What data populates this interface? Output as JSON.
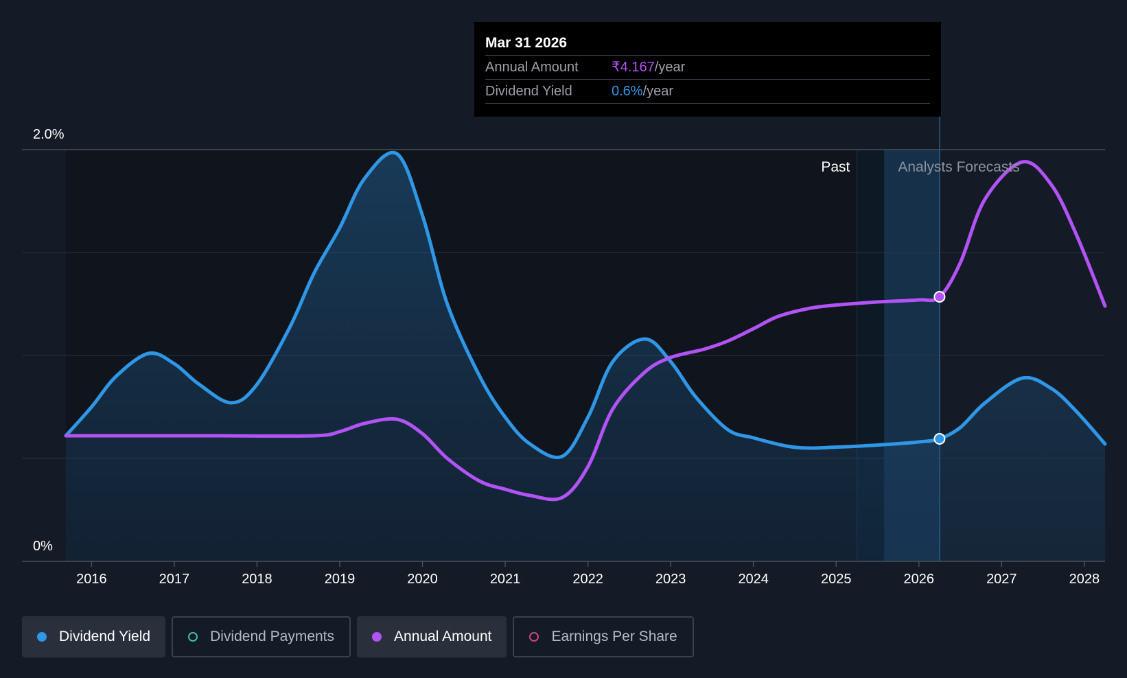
{
  "tooltip": {
    "date": "Mar 31 2026",
    "rows": [
      {
        "label": "Annual Amount",
        "value": "₹4.167",
        "unit": "/year"
      },
      {
        "label": "Dividend Yield",
        "value": "0.6%",
        "unit": "/year"
      }
    ]
  },
  "legend": [
    {
      "label": "Dividend Yield",
      "color": "#2f97e6",
      "filled": true,
      "active": true
    },
    {
      "label": "Dividend Payments",
      "color": "#3dbfb0",
      "filled": false,
      "active": false
    },
    {
      "label": "Annual Amount",
      "color": "#b153f5",
      "filled": true,
      "active": true
    },
    {
      "label": "Earnings Per Share",
      "color": "#d0457a",
      "filled": false,
      "active": false
    }
  ],
  "chart_data": {
    "type": "line",
    "title": "",
    "x_ticks": [
      "2016",
      "2017",
      "2018",
      "2019",
      "2020",
      "2021",
      "2022",
      "2023",
      "2024",
      "2025",
      "2026",
      "2027",
      "2028"
    ],
    "y_labels": [
      "2.0%",
      "0%"
    ],
    "ylim": [
      0,
      2.0
    ],
    "xlim": [
      2015.69,
      2028.25
    ],
    "regions": {
      "past_label": "Past",
      "forecast_label": "Analysts Forecasts",
      "past_end": 2025.25,
      "shade_start": 2025.58,
      "forecast_start": 2026.25
    },
    "series": [
      {
        "name": "Dividend Yield",
        "color": "#2f97e6",
        "area": true,
        "points": [
          [
            2015.69,
            0.61
          ],
          [
            2016.0,
            0.75
          ],
          [
            2016.3,
            0.9
          ],
          [
            2016.69,
            1.01
          ],
          [
            2017.0,
            0.96
          ],
          [
            2017.3,
            0.86
          ],
          [
            2017.69,
            0.77
          ],
          [
            2018.0,
            0.86
          ],
          [
            2018.4,
            1.14
          ],
          [
            2018.69,
            1.4
          ],
          [
            2019.0,
            1.62
          ],
          [
            2019.3,
            1.86
          ],
          [
            2019.69,
            1.98
          ],
          [
            2020.0,
            1.68
          ],
          [
            2020.3,
            1.25
          ],
          [
            2020.69,
            0.9
          ],
          [
            2021.0,
            0.7
          ],
          [
            2021.3,
            0.57
          ],
          [
            2021.69,
            0.51
          ],
          [
            2022.0,
            0.7
          ],
          [
            2022.3,
            0.97
          ],
          [
            2022.69,
            1.08
          ],
          [
            2023.0,
            0.97
          ],
          [
            2023.3,
            0.8
          ],
          [
            2023.69,
            0.64
          ],
          [
            2024.0,
            0.6
          ],
          [
            2024.4,
            0.56
          ],
          [
            2024.69,
            0.55
          ],
          [
            2025.0,
            0.555
          ],
          [
            2025.3,
            0.56
          ],
          [
            2025.69,
            0.57
          ],
          [
            2026.0,
            0.58
          ],
          [
            2026.25,
            0.595
          ],
          [
            2026.5,
            0.65
          ],
          [
            2026.8,
            0.77
          ],
          [
            2027.25,
            0.89
          ],
          [
            2027.6,
            0.84
          ],
          [
            2027.9,
            0.73
          ],
          [
            2028.25,
            0.57
          ]
        ]
      },
      {
        "name": "Annual Amount",
        "color": "#b153f5",
        "area": false,
        "points": [
          [
            2015.69,
            0.61
          ],
          [
            2016.5,
            0.61
          ],
          [
            2017.5,
            0.61
          ],
          [
            2018.69,
            0.61
          ],
          [
            2019.0,
            0.63
          ],
          [
            2019.3,
            0.67
          ],
          [
            2019.69,
            0.69
          ],
          [
            2020.0,
            0.62
          ],
          [
            2020.3,
            0.5
          ],
          [
            2020.69,
            0.39
          ],
          [
            2021.0,
            0.35
          ],
          [
            2021.3,
            0.32
          ],
          [
            2021.69,
            0.31
          ],
          [
            2022.0,
            0.46
          ],
          [
            2022.3,
            0.74
          ],
          [
            2022.69,
            0.92
          ],
          [
            2023.0,
            0.99
          ],
          [
            2023.4,
            1.03
          ],
          [
            2023.69,
            1.07
          ],
          [
            2024.0,
            1.13
          ],
          [
            2024.3,
            1.19
          ],
          [
            2024.69,
            1.23
          ],
          [
            2025.0,
            1.245
          ],
          [
            2025.5,
            1.26
          ],
          [
            2026.0,
            1.27
          ],
          [
            2026.25,
            1.285
          ],
          [
            2026.5,
            1.45
          ],
          [
            2026.8,
            1.76
          ],
          [
            2027.25,
            1.94
          ],
          [
            2027.6,
            1.83
          ],
          [
            2027.9,
            1.59
          ],
          [
            2028.25,
            1.24
          ]
        ]
      }
    ],
    "markers": [
      {
        "series": "Annual Amount",
        "x": 2026.25,
        "y": 1.285
      },
      {
        "series": "Dividend Yield",
        "x": 2026.25,
        "y": 0.595
      }
    ]
  }
}
